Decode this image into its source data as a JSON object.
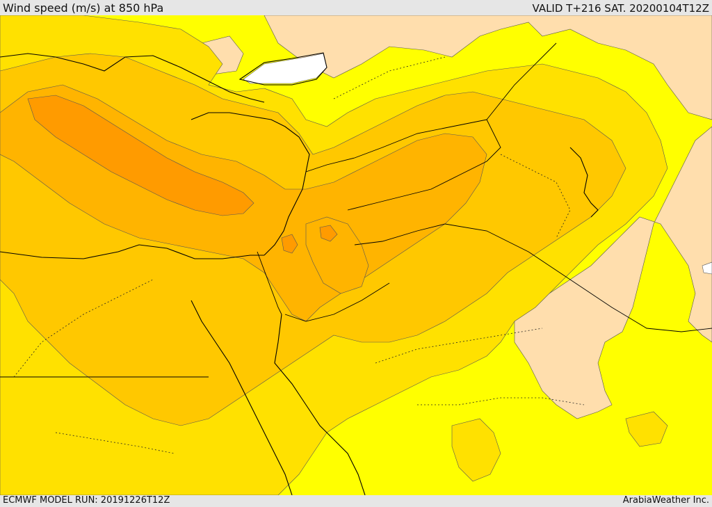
{
  "header": {
    "title": "Wind speed (m/s) at 850 hPa",
    "valid_time": "VALID T+216 SAT. 20200104T12Z"
  },
  "footer": {
    "model_run": "ECMWF MODEL RUN: 20191226T12Z",
    "credit": "ArabiaWeather Inc."
  },
  "map": {
    "field": "wind speed at 850 hPa",
    "colors": {
      "calm": "#ffffff",
      "very_low": "#ffdead",
      "low": "#ffff00",
      "moderate": "#ffe100",
      "elevated": "#ffc800",
      "strong": "#ffb400",
      "very_strong": "#ff9b00",
      "coastline": "#000000",
      "contour": "#555555"
    }
  }
}
